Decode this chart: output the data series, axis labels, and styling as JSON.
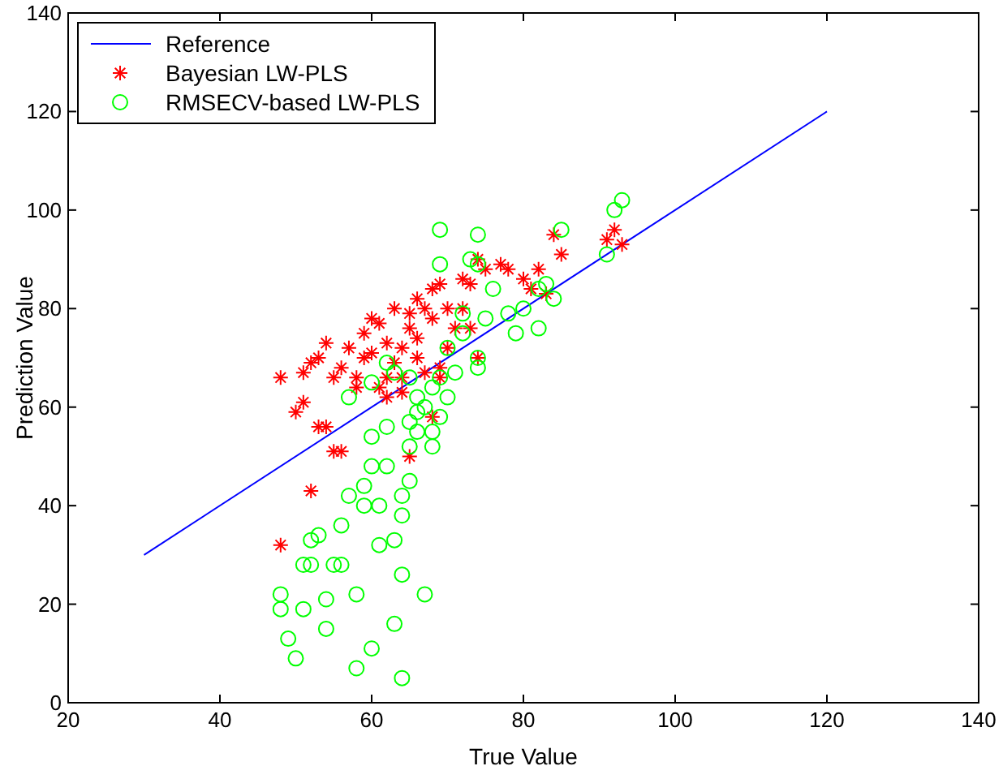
{
  "chart_data": {
    "type": "scatter",
    "xlabel": "True Value",
    "ylabel": "Prediction Value",
    "xlim": [
      20,
      140
    ],
    "ylim": [
      0,
      140
    ],
    "xticks": [
      20,
      40,
      60,
      80,
      100,
      120,
      140
    ],
    "yticks": [
      0,
      20,
      40,
      60,
      80,
      100,
      120,
      140
    ],
    "grid": false,
    "legend": "top left",
    "series": [
      {
        "name": "Reference",
        "type": "line",
        "color": "#0000ff",
        "marker": "none",
        "line_style": "solid",
        "x": [
          30,
          120
        ],
        "values": [
          30,
          120
        ]
      },
      {
        "name": "Bayesian LW-PLS",
        "type": "scatter",
        "color": "#ff0000",
        "marker": "cross",
        "x": [
          48,
          48,
          50,
          51,
          52,
          51,
          52,
          53,
          53,
          54,
          54,
          55,
          55,
          56,
          56,
          57,
          58,
          58,
          59,
          59,
          60,
          60,
          61,
          61,
          62,
          62,
          63,
          63,
          64,
          64,
          65,
          65,
          65,
          66,
          66,
          66,
          67,
          67,
          68,
          68,
          69,
          69,
          70,
          70,
          71,
          72,
          72,
          73,
          73,
          74,
          74,
          75,
          77,
          78,
          80,
          81,
          82,
          83,
          84,
          85,
          91,
          92,
          93,
          62,
          64,
          68,
          69
        ],
        "values": [
          66,
          32,
          59,
          61,
          43,
          67,
          69,
          56,
          70,
          73,
          56,
          66,
          51,
          68,
          51,
          72,
          66,
          64,
          70,
          75,
          78,
          71,
          77,
          64,
          73,
          66,
          80,
          69,
          72,
          66,
          79,
          76,
          50,
          82,
          74,
          70,
          80,
          67,
          84,
          78,
          85,
          66,
          80,
          72,
          76,
          86,
          80,
          85,
          76,
          90,
          70,
          88,
          89,
          88,
          86,
          84,
          88,
          83,
          95,
          91,
          94,
          96,
          93,
          62,
          63,
          58,
          68
        ]
      },
      {
        "name": "RMSECV-based LW-PLS",
        "type": "scatter",
        "color": "#00ff00",
        "marker": "circle",
        "x": [
          48,
          48,
          49,
          50,
          51,
          51,
          52,
          52,
          53,
          54,
          54,
          55,
          56,
          56,
          57,
          58,
          58,
          59,
          59,
          60,
          60,
          60,
          61,
          61,
          62,
          62,
          63,
          63,
          64,
          64,
          64,
          64,
          65,
          65,
          65,
          66,
          66,
          67,
          67,
          68,
          68,
          68,
          69,
          69,
          69,
          69,
          70,
          70,
          71,
          72,
          72,
          73,
          74,
          74,
          74,
          74,
          75,
          76,
          78,
          79,
          80,
          82,
          82,
          83,
          84,
          85,
          91,
          92,
          93,
          60,
          62,
          63,
          57,
          66,
          65
        ],
        "values": [
          22,
          19,
          13,
          9,
          19,
          28,
          28,
          33,
          34,
          21,
          15,
          28,
          28,
          36,
          42,
          7,
          22,
          40,
          44,
          11,
          48,
          54,
          32,
          40,
          56,
          48,
          16,
          33,
          5,
          26,
          38,
          42,
          45,
          52,
          57,
          55,
          59,
          22,
          60,
          52,
          55,
          64,
          58,
          66,
          89,
          96,
          62,
          72,
          67,
          79,
          75,
          90,
          70,
          68,
          95,
          89,
          78,
          84,
          79,
          75,
          80,
          76,
          84,
          85,
          82,
          96,
          91,
          100,
          102,
          65,
          69,
          67,
          62,
          62,
          66
        ]
      }
    ]
  }
}
